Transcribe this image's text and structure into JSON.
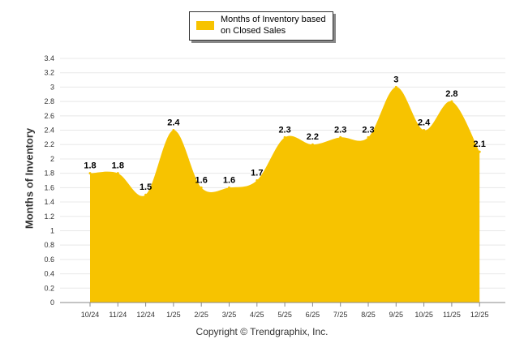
{
  "chart_data": {
    "type": "area",
    "categories": [
      "10/24",
      "11/24",
      "12/24",
      "1/25",
      "2/25",
      "3/25",
      "4/25",
      "5/25",
      "6/25",
      "7/25",
      "8/25",
      "9/25",
      "10/25",
      "11/25",
      "12/25"
    ],
    "series": [
      {
        "name": "Months of Inventory based on Closed Sales",
        "values": [
          1.8,
          1.8,
          1.5,
          2.4,
          1.6,
          1.6,
          1.7,
          2.3,
          2.2,
          2.3,
          2.3,
          3,
          2.4,
          2.8,
          2.1
        ]
      }
    ],
    "data_labels": [
      "1.8",
      "1.8",
      "1.5",
      "2.4",
      "1.6",
      "1.6",
      "1.7",
      "2.3",
      "2.2",
      "2.3",
      "2.3",
      "3",
      "2.4",
      "2.8",
      "2.1"
    ],
    "ylabel": "Months of Inventory",
    "xlabel": "",
    "ylim": [
      0,
      3.4
    ],
    "yticks": [
      "0",
      "0.2",
      "0.4",
      "0.6",
      "0.8",
      "1",
      "1.2",
      "1.4",
      "1.6",
      "1.8",
      "2",
      "2.2",
      "2.4",
      "2.6",
      "2.8",
      "3",
      "3.2",
      "3.4"
    ],
    "grid": true,
    "legend_position": "top-center",
    "colors": {
      "fill": "#F7C300",
      "grid": "#E8E8E8",
      "axis": "#888888",
      "text": "#000000"
    }
  },
  "footer": {
    "copyright": "Copyright © Trendgraphix, Inc."
  }
}
